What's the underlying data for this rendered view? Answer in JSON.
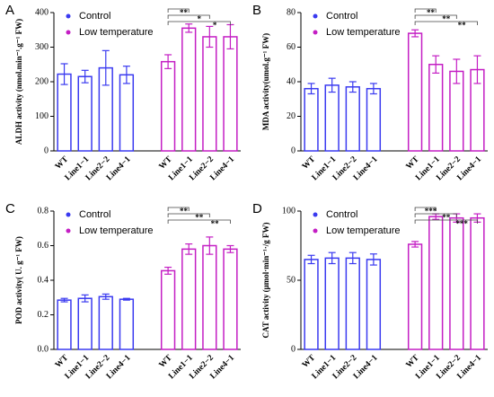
{
  "chart_data": [
    {
      "type": "bar",
      "panel": "A",
      "ylabel": "ALDH activity (nmol.min⁻¹.g⁻¹ FW)",
      "categories": [
        "WT",
        "Line1−1",
        "Line2−2",
        "Line4−1",
        "WT",
        "Line1−1",
        "Line2−2",
        "Line4−1"
      ],
      "series": [
        {
          "name": "Control",
          "color": "#3a3af0",
          "values": [
            222,
            215,
            240,
            220,
            null,
            null,
            null,
            null
          ],
          "errors": [
            30,
            18,
            50,
            25,
            null,
            null,
            null,
            null
          ]
        },
        {
          "name": "Low temperature",
          "color": "#c41ec4",
          "values": [
            null,
            null,
            null,
            null,
            258,
            355,
            330,
            330
          ],
          "errors": [
            null,
            null,
            null,
            null,
            20,
            12,
            30,
            35
          ]
        }
      ],
      "significance": [
        null,
        null,
        null,
        null,
        null,
        "**",
        "*",
        "*"
      ],
      "ylim": [
        0,
        400
      ],
      "yticks": [
        0,
        100,
        200,
        300,
        400
      ]
    },
    {
      "type": "bar",
      "panel": "B",
      "ylabel": "MDA activity(umol.g⁻¹ FW)",
      "categories": [
        "WT",
        "Line1−1",
        "Line2−2",
        "Line4−1",
        "WT",
        "Line1−1",
        "Line2−2",
        "Line4−1"
      ],
      "series": [
        {
          "name": "Control",
          "color": "#3a3af0",
          "values": [
            36,
            38,
            37,
            36,
            null,
            null,
            null,
            null
          ],
          "errors": [
            3,
            4,
            3,
            3,
            null,
            null,
            null,
            null
          ]
        },
        {
          "name": "Low temperature",
          "color": "#c41ec4",
          "values": [
            null,
            null,
            null,
            null,
            68,
            50,
            46,
            47
          ],
          "errors": [
            null,
            null,
            null,
            null,
            2,
            5,
            7,
            8
          ]
        }
      ],
      "significance": [
        null,
        null,
        null,
        null,
        null,
        "**",
        "**",
        "**"
      ],
      "ylim": [
        0,
        80
      ],
      "yticks": [
        0,
        20,
        40,
        60,
        80
      ]
    },
    {
      "type": "bar",
      "panel": "C",
      "ylabel": "POD activity( U. g⁻¹ FW)",
      "categories": [
        "WT",
        "Line1−1",
        "Line2−2",
        "Line4−1",
        "WT",
        "Line1−1",
        "Line2−2",
        "Line4−1"
      ],
      "series": [
        {
          "name": "Control",
          "color": "#3a3af0",
          "values": [
            0.285,
            0.295,
            0.305,
            0.29,
            null,
            null,
            null,
            null
          ],
          "errors": [
            0.01,
            0.02,
            0.015,
            0.005,
            null,
            null,
            null,
            null
          ]
        },
        {
          "name": "Low temperature",
          "color": "#c41ec4",
          "values": [
            null,
            null,
            null,
            null,
            0.455,
            0.58,
            0.6,
            0.58
          ],
          "errors": [
            null,
            null,
            null,
            null,
            0.02,
            0.03,
            0.05,
            0.02
          ]
        }
      ],
      "significance": [
        null,
        null,
        null,
        null,
        null,
        "**",
        "**",
        "**"
      ],
      "ylim": [
        0,
        0.8
      ],
      "yticks": [
        {
          "value": 0,
          "label": "0.0"
        },
        0.2,
        0.4,
        0.6,
        0.8
      ]
    },
    {
      "type": "bar",
      "panel": "D",
      "ylabel": "CAT activity (μmol·min⁻¹·/g FW)",
      "categories": [
        "WT",
        "Line1−1",
        "Line2−2",
        "Line4−1",
        "WT",
        "Line1−1",
        "Line2−2",
        "Line4−1"
      ],
      "series": [
        {
          "name": "Control",
          "color": "#3a3af0",
          "values": [
            65,
            66,
            66,
            65,
            null,
            null,
            null,
            null
          ],
          "errors": [
            3,
            4,
            4,
            4,
            null,
            null,
            null,
            null
          ]
        },
        {
          "name": "Low temperature",
          "color": "#c41ec4",
          "values": [
            null,
            null,
            null,
            null,
            76,
            96,
            95,
            95
          ],
          "errors": [
            null,
            null,
            null,
            null,
            2,
            2,
            3,
            3
          ]
        }
      ],
      "significance": [
        null,
        null,
        null,
        null,
        null,
        "***",
        "**",
        "***"
      ],
      "ylim": [
        0,
        100
      ],
      "yticks": [
        0,
        50,
        100
      ]
    }
  ]
}
